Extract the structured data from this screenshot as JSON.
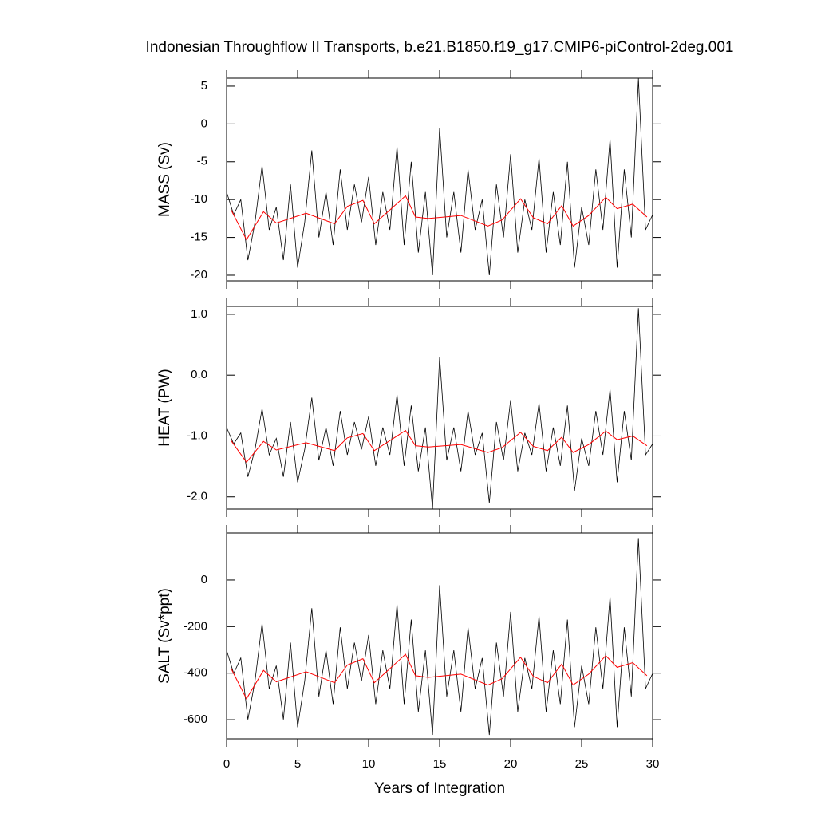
{
  "chart_data": [
    {
      "type": "line",
      "title": "Indonesian Throughflow II Transports, b.e21.B1850.f19_g17.CMIP6-piControl-2deg.001",
      "ylabel": "MASS (Sv)",
      "xlim": [
        0,
        30
      ],
      "xticks": [
        0,
        5,
        10,
        15,
        20,
        25,
        30
      ],
      "ylim": [
        -20.74,
        6.05
      ],
      "yticks": [
        -20,
        -15,
        -10,
        -5,
        0,
        5
      ],
      "series": [
        {
          "color": "#000000",
          "x": [
            0,
            0.5,
            1,
            1.5,
            2,
            2.5,
            3,
            3.5,
            4,
            4.5,
            5,
            5.5,
            6,
            6.5,
            7,
            7.5,
            8,
            8.5,
            9,
            9.5,
            10,
            10.5,
            11,
            11.5,
            12,
            12.5,
            13,
            13.5,
            14,
            14.5,
            15,
            15.5,
            16,
            16.5,
            17,
            17.5,
            18,
            18.5,
            19,
            19.5,
            20,
            20.5,
            21,
            21.5,
            22,
            22.5,
            23,
            23.5,
            24,
            24.5,
            25,
            25.5,
            26,
            26.5,
            27,
            27.5,
            28,
            28.5,
            29,
            29.5,
            30
          ],
          "values": [
            -9,
            -12,
            -10,
            -18,
            -13,
            -5.5,
            -14,
            -11,
            -18,
            -8,
            -19,
            -13,
            -3.5,
            -15,
            -9,
            -16,
            -6,
            -14,
            -8,
            -13,
            -7,
            -16,
            -9,
            -14,
            -3,
            -16,
            -5,
            -17,
            -9,
            -20,
            -0.5,
            -15,
            -9,
            -17,
            -6,
            -14,
            -10,
            -20,
            -8,
            -15,
            -4,
            -17,
            -10,
            -14,
            -4.5,
            -17,
            -9,
            -16,
            -5,
            -19,
            -11,
            -16,
            -6,
            -14,
            -2,
            -19,
            -6,
            -15,
            6,
            -14,
            -12
          ]
        },
        {
          "color": "#ff0000",
          "x": [
            0.3,
            1.4,
            2.6,
            3.5,
            5.6,
            7.6,
            8.5,
            9.6,
            10.4,
            11.6,
            12.6,
            13.3,
            14.2,
            16.5,
            18.4,
            19.4,
            20.7,
            21.6,
            22.6,
            23.6,
            24.4,
            25.5,
            26.7,
            27.5,
            28.6,
            29.6
          ],
          "values": [
            -11.3,
            -15.3,
            -11.6,
            -13.1,
            -11.8,
            -13.2,
            -10.9,
            -10.1,
            -13.2,
            -11.2,
            -9.5,
            -12.3,
            -12.5,
            -12.1,
            -13.5,
            -12.7,
            -9.9,
            -12.4,
            -13.2,
            -10.8,
            -13.5,
            -12.1,
            -9.7,
            -11.2,
            -10.6,
            -12.3
          ]
        }
      ]
    },
    {
      "type": "line",
      "ylabel": "HEAT (PW)",
      "xlim": [
        0,
        30
      ],
      "xticks": [
        0,
        5,
        10,
        15,
        20,
        25,
        30
      ],
      "ylim": [
        -2.2,
        1.13
      ],
      "yticks": [
        {
          "value": -2,
          "label": "-2.0"
        },
        {
          "value": -1,
          "label": "-1.0"
        },
        {
          "value": 0,
          "label": "0.0"
        },
        {
          "value": 1,
          "label": "1.0"
        }
      ],
      "series": [
        {
          "color": "#000000",
          "x": [
            0,
            0.5,
            1,
            1.5,
            2,
            2.5,
            3,
            3.5,
            4,
            4.5,
            5,
            5.5,
            6,
            6.5,
            7,
            7.5,
            8,
            8.5,
            9,
            9.5,
            10,
            10.5,
            11,
            11.5,
            12,
            12.5,
            13,
            13.5,
            14,
            14.5,
            15,
            15.5,
            16,
            16.5,
            17,
            17.5,
            18,
            18.5,
            19,
            19.5,
            20,
            20.5,
            21,
            21.5,
            22,
            22.5,
            23,
            23.5,
            24,
            24.5,
            25,
            25.5,
            26,
            26.5,
            27,
            27.5,
            28,
            28.5,
            29,
            29.5,
            30
          ],
          "values": [
            -0.86,
            -1.13,
            -0.95,
            -1.67,
            -1.22,
            -0.55,
            -1.31,
            -1.04,
            -1.67,
            -0.77,
            -1.76,
            -1.22,
            -0.37,
            -1.4,
            -0.86,
            -1.49,
            -0.59,
            -1.31,
            -0.77,
            -1.22,
            -0.68,
            -1.49,
            -0.86,
            -1.31,
            -0.32,
            -1.49,
            -0.5,
            -1.58,
            -0.86,
            -2.2,
            0.3,
            -1.4,
            -0.86,
            -1.58,
            -0.59,
            -1.31,
            -0.95,
            -2.1,
            -0.77,
            -1.4,
            -0.41,
            -1.58,
            -0.95,
            -1.31,
            -0.46,
            -1.58,
            -0.86,
            -1.49,
            -0.5,
            -1.9,
            -1.04,
            -1.49,
            -0.59,
            -1.31,
            -0.23,
            -1.76,
            -0.59,
            -1.4,
            1.1,
            -1.31,
            -1.13
          ]
        },
        {
          "color": "#ff0000",
          "x": [
            0.3,
            1.4,
            2.6,
            3.5,
            5.6,
            7.6,
            8.5,
            9.6,
            10.4,
            11.6,
            12.6,
            13.3,
            14.2,
            16.5,
            18.4,
            19.4,
            20.7,
            21.6,
            22.6,
            23.6,
            24.4,
            25.5,
            26.7,
            27.5,
            28.6,
            29.6
          ],
          "values": [
            -1.07,
            -1.43,
            -1.09,
            -1.23,
            -1.11,
            -1.24,
            -1.03,
            -0.96,
            -1.24,
            -1.06,
            -0.91,
            -1.16,
            -1.18,
            -1.14,
            -1.27,
            -1.19,
            -0.94,
            -1.17,
            -1.24,
            -1.02,
            -1.27,
            -1.14,
            -0.92,
            -1.06,
            -1.0,
            -1.16
          ]
        }
      ]
    },
    {
      "type": "line",
      "ylabel": "SALT (Sv*ppt)",
      "xlabel": "Years of Integration",
      "xlim": [
        0,
        30
      ],
      "xticks": [
        0,
        5,
        10,
        15,
        20,
        25,
        30
      ],
      "ylim": [
        -682,
        202
      ],
      "yticks": [
        -600,
        -400,
        -200,
        0
      ],
      "series": [
        {
          "color": "#000000",
          "x": [
            0,
            0.5,
            1,
            1.5,
            2,
            2.5,
            3,
            3.5,
            4,
            4.5,
            5,
            5.5,
            6,
            6.5,
            7,
            7.5,
            8,
            8.5,
            9,
            9.5,
            10,
            10.5,
            11,
            11.5,
            12,
            12.5,
            13,
            13.5,
            14,
            14.5,
            15,
            15.5,
            16,
            16.5,
            17,
            17.5,
            18,
            18.5,
            19,
            19.5,
            20,
            20.5,
            21,
            21.5,
            22,
            22.5,
            23,
            23.5,
            24,
            24.5,
            25,
            25.5,
            26,
            26.5,
            27,
            27.5,
            28,
            28.5,
            29,
            29.5,
            30
          ],
          "values": [
            -302,
            -401,
            -335,
            -599,
            -434,
            -186,
            -467,
            -368,
            -599,
            -269,
            -632,
            -434,
            -121,
            -500,
            -302,
            -533,
            -203,
            -467,
            -269,
            -434,
            -236,
            -533,
            -302,
            -467,
            -104,
            -533,
            -170,
            -566,
            -302,
            -665,
            -22,
            -500,
            -302,
            -566,
            -203,
            -467,
            -335,
            -665,
            -269,
            -500,
            -137,
            -566,
            -335,
            -467,
            -154,
            -566,
            -302,
            -533,
            -170,
            -632,
            -368,
            -533,
            -203,
            -467,
            -71,
            -632,
            -203,
            -500,
            180,
            -467,
            -401
          ]
        },
        {
          "color": "#ff0000",
          "x": [
            0.3,
            1.4,
            2.6,
            3.5,
            5.6,
            7.6,
            8.5,
            9.6,
            10.4,
            11.6,
            12.6,
            13.3,
            14.2,
            16.5,
            18.4,
            19.4,
            20.7,
            21.6,
            22.6,
            23.6,
            24.4,
            25.5,
            26.7,
            27.5,
            28.6,
            29.6
          ],
          "values": [
            -378,
            -510,
            -388,
            -437,
            -394,
            -441,
            -365,
            -338,
            -441,
            -375,
            -319,
            -411,
            -418,
            -404,
            -451,
            -424,
            -332,
            -414,
            -441,
            -361,
            -451,
            -404,
            -325,
            -375,
            -355,
            -411
          ]
        }
      ]
    }
  ]
}
